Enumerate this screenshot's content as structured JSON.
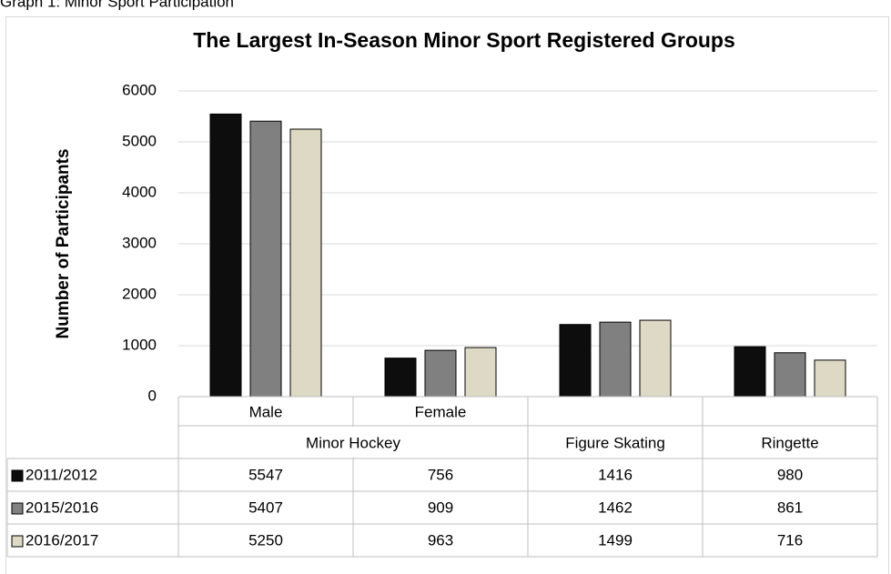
{
  "caption": "Graph 1: Minor Sport Participation",
  "chart_data": {
    "type": "bar",
    "title": "The Largest In-Season Minor Sport Registered Groups",
    "y_label": "Number of Participants",
    "category_groups": [
      {
        "name": "Minor Hockey",
        "categories": [
          "Male",
          "Female"
        ]
      },
      {
        "name": "Figure Skating"
      },
      {
        "name": "Ringette"
      }
    ],
    "series": [
      {
        "name": "2011/2012",
        "color": "#0d0d0d",
        "values": [
          5547,
          756,
          1416,
          980
        ]
      },
      {
        "name": "2015/2016",
        "color": "#808080",
        "values": [
          5407,
          909,
          1462,
          861
        ]
      },
      {
        "name": "2016/2017",
        "color": "#ddd9c4",
        "values": [
          5250,
          963,
          1499,
          716
        ]
      }
    ],
    "ylim": [
      0,
      6000
    ],
    "yticks": [
      0,
      1000,
      2000,
      3000,
      4000,
      5000,
      6000
    ],
    "grid": true,
    "data_table": true
  }
}
